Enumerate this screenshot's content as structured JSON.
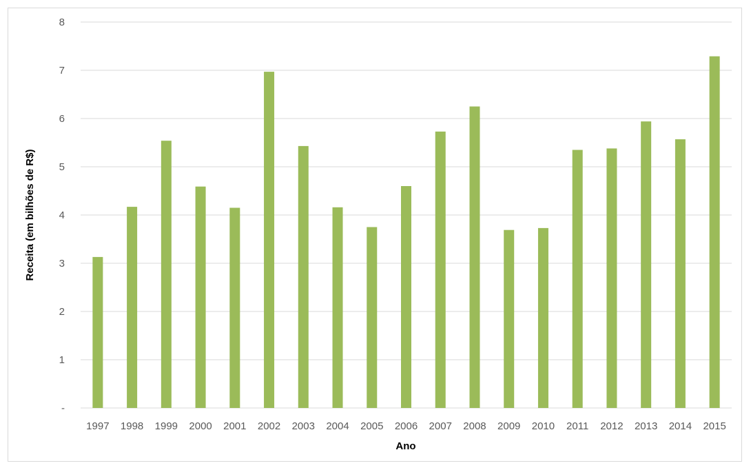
{
  "chart_data": {
    "type": "bar",
    "title": "",
    "xlabel": "Ano",
    "ylabel": "Receita (em bilhões de R$)",
    "ylim": [
      0,
      8
    ],
    "yticks": [
      {
        "value": 0,
        "label": "-"
      },
      {
        "value": 1,
        "label": "1"
      },
      {
        "value": 2,
        "label": "2"
      },
      {
        "value": 3,
        "label": "3"
      },
      {
        "value": 4,
        "label": "4"
      },
      {
        "value": 5,
        "label": "5"
      },
      {
        "value": 6,
        "label": "6"
      },
      {
        "value": 7,
        "label": "7"
      },
      {
        "value": 8,
        "label": "8"
      }
    ],
    "grid": true,
    "legend": "none",
    "bar_color": "#9bbb59",
    "grid_color": "#d9d9d9",
    "categories": [
      "1997",
      "1998",
      "1999",
      "2000",
      "2001",
      "2002",
      "2003",
      "2004",
      "2005",
      "2006",
      "2007",
      "2008",
      "2009",
      "2010",
      "2011",
      "2012",
      "2013",
      "2014",
      "2015"
    ],
    "values": [
      3.13,
      4.17,
      5.54,
      4.59,
      4.15,
      6.97,
      5.43,
      4.16,
      3.75,
      4.6,
      5.73,
      6.25,
      3.69,
      3.73,
      5.35,
      5.38,
      5.94,
      5.57,
      7.29
    ]
  }
}
